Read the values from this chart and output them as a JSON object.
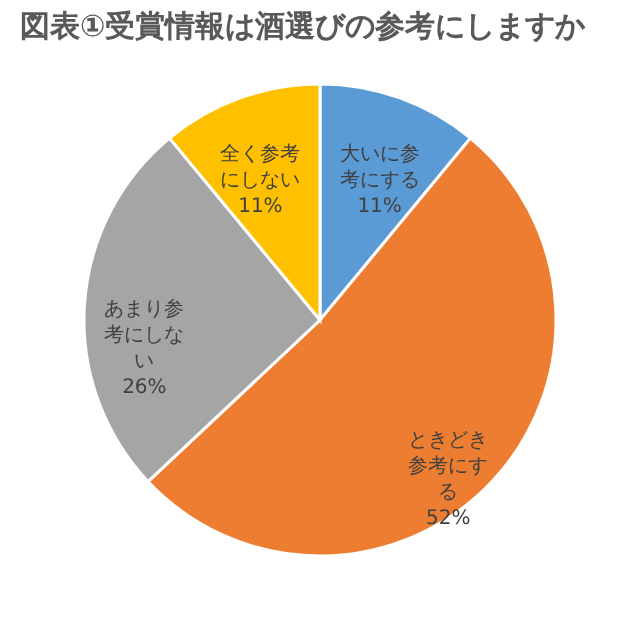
{
  "chart_data": {
    "type": "pie",
    "title": "図表①受賞情報は酒選びの参考にしますか",
    "categories": [
      "大いに参考にする",
      "ときどき参考にする",
      "あまり参考にしない",
      "全く参考にしない"
    ],
    "values": [
      11,
      52,
      26,
      11
    ],
    "colors": [
      "#5b9bd5",
      "#ed7d31",
      "#a5a5a5",
      "#ffc000"
    ],
    "value_labels": [
      "11%",
      "52%",
      "26%",
      "11%"
    ],
    "legend": false
  }
}
